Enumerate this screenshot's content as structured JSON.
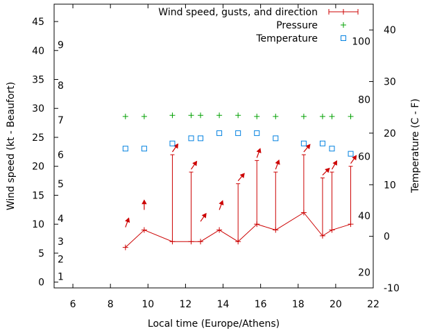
{
  "chart_data": {
    "type": "line",
    "xlabel": "Local time (Europe/Athens)",
    "ylabel": "Wind speed (kt - Beaufort)",
    "y2label": "Temperature (C - F)",
    "xlim": [
      5,
      22
    ],
    "ylim": [
      -1,
      48
    ],
    "y2lim": [
      -10,
      45
    ],
    "x_ticks": [
      6,
      8,
      10,
      12,
      14,
      16,
      18,
      20,
      22
    ],
    "y_ticks": [
      0,
      5,
      10,
      15,
      20,
      25,
      30,
      35,
      40,
      45
    ],
    "y2_ticks": [
      -10,
      0,
      10,
      20,
      30,
      40
    ],
    "beaufort_labels": [
      {
        "label": "1",
        "y": 1
      },
      {
        "label": "2",
        "y": 4
      },
      {
        "label": "3",
        "y": 7
      },
      {
        "label": "4",
        "y": 11
      },
      {
        "label": "5",
        "y": 17
      },
      {
        "label": "6",
        "y": 22
      },
      {
        "label": "7",
        "y": 28
      },
      {
        "label": "8",
        "y": 34
      },
      {
        "label": "9",
        "y": 41
      }
    ],
    "fahrenheit_labels": [
      {
        "label": "20",
        "y2": -7
      },
      {
        "label": "40",
        "y2": 4
      },
      {
        "label": "60",
        "y2": 15.5
      },
      {
        "label": "80",
        "y2": 26.5
      },
      {
        "label": "100",
        "y2": 37.8
      }
    ],
    "legend": {
      "position": "top-right",
      "entries": [
        {
          "label": "Wind speed, gusts, and direction",
          "style": "errorline",
          "color": "#cc0000"
        },
        {
          "label": "Pressure",
          "style": "plus",
          "color": "#00a000"
        },
        {
          "label": "Temperature",
          "style": "square",
          "color": "#0080e0"
        }
      ]
    },
    "series": [
      {
        "name": "Wind speed, gusts, and direction",
        "color": "#cc0000",
        "x": [
          8.8,
          9.8,
          11.3,
          12.3,
          12.8,
          13.8,
          14.8,
          15.8,
          16.8,
          18.3,
          19.3,
          19.8,
          20.8
        ],
        "values": [
          6,
          9,
          7,
          7,
          7,
          9,
          7,
          10,
          9,
          12,
          8,
          9,
          10
        ],
        "gusts": [
          null,
          null,
          22,
          19,
          null,
          null,
          17,
          21,
          19,
          22,
          18,
          19,
          20
        ],
        "direction_deg": [
          200,
          180,
          215,
          215,
          215,
          200,
          220,
          200,
          200,
          220,
          225,
          210,
          215
        ]
      },
      {
        "name": "Pressure",
        "color": "#00a000",
        "x": [
          8.8,
          9.8,
          11.3,
          12.3,
          12.8,
          13.8,
          14.8,
          15.8,
          16.8,
          18.3,
          19.3,
          19.8,
          20.8
        ],
        "values": [
          28.6,
          28.6,
          28.8,
          28.8,
          28.8,
          28.8,
          28.8,
          28.6,
          28.6,
          28.6,
          28.6,
          28.6,
          28.6
        ]
      },
      {
        "name": "Temperature",
        "color": "#0080e0",
        "axis": "y2",
        "x": [
          8.8,
          9.8,
          11.3,
          12.3,
          12.8,
          13.8,
          14.8,
          15.8,
          16.8,
          18.3,
          19.3,
          19.8,
          20.8
        ],
        "values": [
          17,
          17,
          18,
          19,
          19,
          20,
          20,
          20,
          19,
          18,
          18,
          17,
          16
        ]
      }
    ]
  }
}
